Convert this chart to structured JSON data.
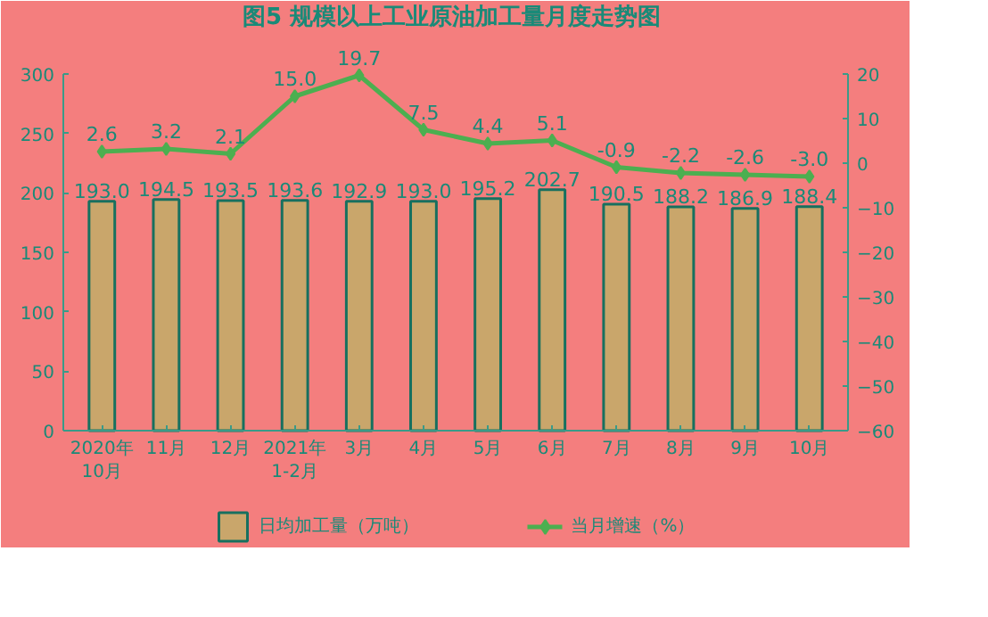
{
  "chart_data": {
    "type": "bar",
    "title": "图5  规模以上工业原油加工量月度走势图",
    "categories": [
      "2020年\n10月",
      "11月",
      "12月",
      "2021年\n1-2月",
      "3月",
      "4月",
      "5月",
      "6月",
      "7月",
      "8月",
      "9月",
      "10月"
    ],
    "series": [
      {
        "name": "日均加工量（万吨）",
        "color": "#c9a66b",
        "values": [
          193.0,
          194.5,
          193.5,
          193.6,
          192.9,
          193.0,
          195.2,
          202.7,
          190.5,
          188.2,
          186.9,
          188.4
        ],
        "value_labels": [
          "193.0",
          "194.5",
          "193.5",
          "193.6",
          "192.9",
          "193.0",
          "195.2",
          "202.7",
          "190.5",
          "188.2",
          "186.9",
          "188.4"
        ]
      },
      {
        "name": "当月增速（%）",
        "type": "line",
        "axis": "y2",
        "color": "#4caf50",
        "marker": "diamond",
        "values": [
          2.6,
          3.2,
          2.1,
          15.0,
          19.7,
          7.5,
          4.4,
          5.1,
          -0.9,
          -2.2,
          -2.6,
          -3.0
        ],
        "value_labels": [
          "2.6",
          "3.2",
          "2.1",
          "15.0",
          "19.7",
          "7.5",
          "4.4",
          "5.1",
          "-0.9",
          "-2.2",
          "-2.6",
          "-3.0"
        ]
      }
    ],
    "ylim": [
      0,
      300
    ],
    "yticks": [
      0,
      50,
      100,
      150,
      200,
      250,
      300
    ],
    "y2lim": [
      -60,
      20
    ],
    "y2ticks": [
      -60,
      -50,
      -40,
      -30,
      -20,
      -10,
      0,
      10,
      20
    ],
    "legend": "bottom",
    "grid": false
  }
}
